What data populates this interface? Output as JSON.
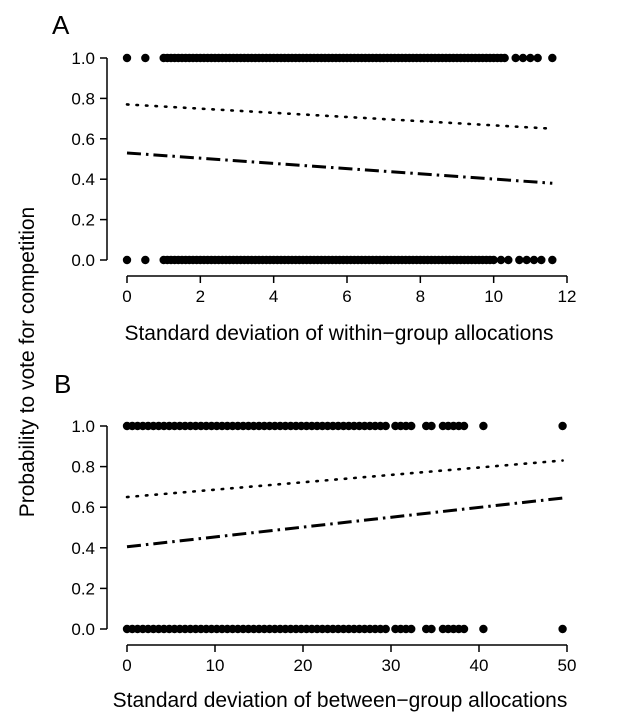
{
  "shared_ylabel": "Probability to vote for competition",
  "chart_data": [
    {
      "type": "scatter",
      "panel_label": "A",
      "title": "",
      "xlabel": "Standard deviation of within−group allocations",
      "ylabel": "",
      "xlim": [
        0,
        12
      ],
      "ylim": [
        0,
        1
      ],
      "xticks": [
        0,
        2,
        4,
        6,
        8,
        10,
        12
      ],
      "yticks": [
        0.0,
        0.2,
        0.4,
        0.6,
        0.8,
        1.0
      ],
      "xtick_labels": [
        "0",
        "2",
        "4",
        "6",
        "8",
        "10",
        "12"
      ],
      "ytick_labels": [
        "0.0",
        "0.2",
        "0.4",
        "0.6",
        "0.8",
        "1.0"
      ],
      "grid": false,
      "series": [
        {
          "kind": "points",
          "y": 1.0,
          "x": [
            0.0,
            0.5,
            1.0,
            1.1,
            1.2,
            1.3,
            1.4,
            1.5,
            1.6,
            1.7,
            1.8,
            1.9,
            2.0,
            2.1,
            2.2,
            2.3,
            2.4,
            2.5,
            2.6,
            2.7,
            2.8,
            2.9,
            3.0,
            3.1,
            3.2,
            3.3,
            3.4,
            3.5,
            3.6,
            3.7,
            3.8,
            3.9,
            4.0,
            4.1,
            4.2,
            4.3,
            4.4,
            4.5,
            4.6,
            4.7,
            4.8,
            4.9,
            5.0,
            5.1,
            5.2,
            5.3,
            5.4,
            5.5,
            5.6,
            5.7,
            5.8,
            5.9,
            6.0,
            6.1,
            6.2,
            6.3,
            6.4,
            6.5,
            6.6,
            6.7,
            6.8,
            6.9,
            7.0,
            7.1,
            7.2,
            7.3,
            7.4,
            7.5,
            7.6,
            7.7,
            7.8,
            7.9,
            8.0,
            8.1,
            8.2,
            8.3,
            8.4,
            8.5,
            8.6,
            8.7,
            8.8,
            8.9,
            9.0,
            9.1,
            9.2,
            9.3,
            9.4,
            9.5,
            9.6,
            9.7,
            9.8,
            9.9,
            10.0,
            10.1,
            10.2,
            10.3,
            10.6,
            10.8,
            11.0,
            11.2,
            11.6
          ]
        },
        {
          "kind": "points",
          "y": 0.0,
          "x": [
            0.0,
            0.5,
            1.0,
            1.1,
            1.2,
            1.3,
            1.4,
            1.5,
            1.6,
            1.7,
            1.8,
            1.9,
            2.0,
            2.1,
            2.2,
            2.3,
            2.4,
            2.5,
            2.6,
            2.7,
            2.8,
            2.9,
            3.0,
            3.1,
            3.2,
            3.3,
            3.4,
            3.5,
            3.6,
            3.7,
            3.8,
            3.9,
            4.0,
            4.1,
            4.2,
            4.3,
            4.4,
            4.5,
            4.6,
            4.7,
            4.8,
            4.9,
            5.0,
            5.1,
            5.2,
            5.3,
            5.4,
            5.5,
            5.6,
            5.7,
            5.8,
            5.9,
            6.0,
            6.1,
            6.2,
            6.3,
            6.4,
            6.5,
            6.6,
            6.7,
            6.8,
            6.9,
            7.0,
            7.1,
            7.2,
            7.3,
            7.4,
            7.5,
            7.6,
            7.7,
            7.8,
            7.9,
            8.0,
            8.1,
            8.2,
            8.3,
            8.4,
            8.5,
            8.6,
            8.7,
            8.8,
            8.9,
            9.0,
            9.1,
            9.2,
            9.3,
            9.4,
            9.5,
            9.6,
            9.7,
            9.8,
            9.9,
            10.0,
            10.2,
            10.4,
            10.7,
            10.9,
            11.1,
            11.3,
            11.6
          ]
        },
        {
          "kind": "line",
          "style": "dotted",
          "x": [
            0,
            11.6
          ],
          "y": [
            0.77,
            0.65
          ]
        },
        {
          "kind": "line",
          "style": "dashdot",
          "x": [
            0,
            11.6
          ],
          "y": [
            0.53,
            0.38
          ]
        }
      ]
    },
    {
      "type": "scatter",
      "panel_label": "B",
      "title": "",
      "xlabel": "Standard deviation of between−group allocations",
      "ylabel": "",
      "xlim": [
        0,
        50
      ],
      "ylim": [
        0,
        1
      ],
      "xticks": [
        0,
        10,
        20,
        30,
        40,
        50
      ],
      "yticks": [
        0.0,
        0.2,
        0.4,
        0.6,
        0.8,
        1.0
      ],
      "xtick_labels": [
        "0",
        "10",
        "20",
        "30",
        "40",
        "50"
      ],
      "ytick_labels": [
        "0.0",
        "0.2",
        "0.4",
        "0.6",
        "0.8",
        "1.0"
      ],
      "grid": false,
      "series": [
        {
          "kind": "points",
          "y": 1.0,
          "x": [
            0.0,
            0.6,
            1.2,
            1.8,
            2.4,
            3.0,
            3.6,
            4.2,
            4.8,
            5.4,
            6.0,
            6.6,
            7.2,
            7.8,
            8.4,
            9.0,
            9.6,
            10.2,
            10.8,
            11.4,
            12.0,
            12.6,
            13.2,
            13.8,
            14.4,
            15.0,
            15.6,
            16.2,
            16.8,
            17.4,
            18.0,
            18.6,
            19.2,
            19.8,
            20.4,
            21.0,
            21.6,
            22.2,
            22.8,
            23.4,
            24.0,
            24.6,
            25.2,
            25.8,
            26.4,
            27.0,
            27.6,
            28.2,
            28.8,
            29.4,
            30.5,
            31.1,
            31.7,
            32.3,
            34.0,
            34.6,
            35.9,
            36.5,
            37.1,
            37.7,
            38.3,
            40.5,
            49.5
          ]
        },
        {
          "kind": "points",
          "y": 0.0,
          "x": [
            0.0,
            0.6,
            1.2,
            1.8,
            2.4,
            3.0,
            3.6,
            4.2,
            4.8,
            5.4,
            6.0,
            6.6,
            7.2,
            7.8,
            8.4,
            9.0,
            9.6,
            10.2,
            10.8,
            11.4,
            12.0,
            12.6,
            13.2,
            13.8,
            14.4,
            15.0,
            15.6,
            16.2,
            16.8,
            17.4,
            18.0,
            18.6,
            19.2,
            19.8,
            20.4,
            21.0,
            21.6,
            22.2,
            22.8,
            23.4,
            24.0,
            24.6,
            25.2,
            25.8,
            26.4,
            27.0,
            27.6,
            28.2,
            28.8,
            29.4,
            30.5,
            31.1,
            31.7,
            32.3,
            34.0,
            34.6,
            35.9,
            36.5,
            37.1,
            37.7,
            38.3,
            40.5,
            49.5
          ]
        },
        {
          "kind": "line",
          "style": "dotted",
          "x": [
            0,
            49.5
          ],
          "y": [
            0.65,
            0.83
          ]
        },
        {
          "kind": "line",
          "style": "dashdot",
          "x": [
            0,
            49.5
          ],
          "y": [
            0.405,
            0.645
          ]
        }
      ]
    }
  ]
}
